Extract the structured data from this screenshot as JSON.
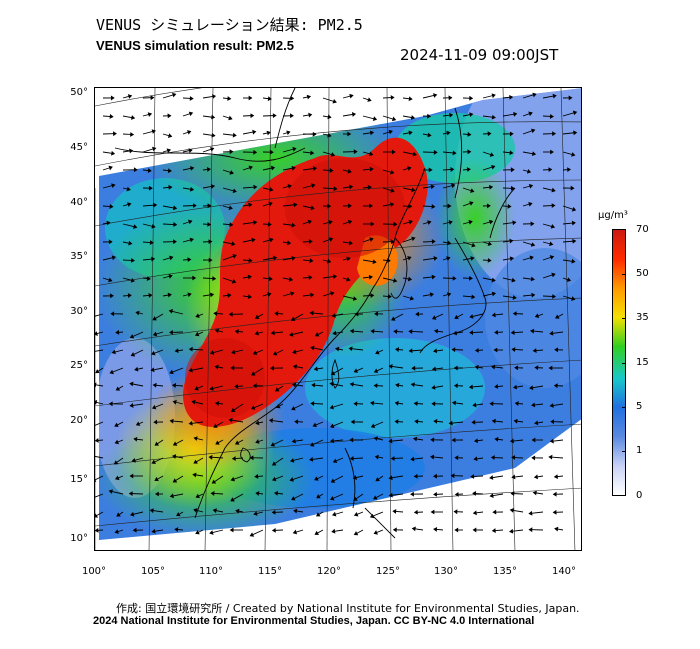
{
  "header": {
    "title_jp": "VENUS シミュレーション結果: PM2.5",
    "title_en": "VENUS simulation result: PM2.5",
    "timestamp": "2024-11-09 09:00JST"
  },
  "map": {
    "region": "East Asia",
    "lat_axis": {
      "labels": [
        "50°",
        "45°",
        "40°",
        "35°",
        "30°",
        "25°",
        "20°",
        "15°",
        "10°"
      ]
    },
    "lon_axis": {
      "labels": [
        "100°",
        "105°",
        "110°",
        "115°",
        "120°",
        "125°",
        "130°",
        "135°",
        "140°"
      ]
    },
    "overlays": [
      "pm2.5-concentration-field",
      "wind-vectors",
      "coastlines",
      "graticule"
    ]
  },
  "colorbar": {
    "unit": "μg/m³",
    "ticks": [
      "70",
      "50",
      "35",
      "15",
      "5",
      "1",
      "0"
    ],
    "colors": [
      "#cc1a10",
      "#ff2a00",
      "#ff9a00",
      "#f5e000",
      "#30d020",
      "#18c8c8",
      "#2070e0",
      "#5a8ae0",
      "#c8d2f5",
      "#ffffff"
    ]
  },
  "footer": {
    "credit": "作成: 国立環境研究所 / Created by National Institute for Environmental Studies, Japan.",
    "copyright": "2024 National Institute for Environmental Studies, Japan. CC BY-NC 4.0 International"
  }
}
